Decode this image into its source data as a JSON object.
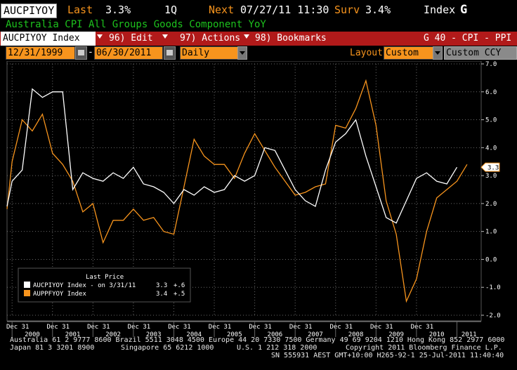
{
  "header": {
    "ticker": "AUCPIYOY",
    "last_label": "Last",
    "last_value": "3.3%",
    "period": "1Q",
    "next_label": "Next",
    "next_value": "07/27/11 11:30",
    "surv_label": "Surv",
    "surv_value": "3.4%",
    "index_label": "Index",
    "g_label": "G"
  },
  "title": "Australia CPI All Groups Goods Component YoY",
  "toolbar": {
    "security": "AUCPIYOY Index",
    "edit": "96) Edit",
    "actions": "97) Actions",
    "bookmarks": "98) Bookmarks",
    "graph_id": "G 40 - CPI - PPI"
  },
  "controls": {
    "start_date": "12/31/1999",
    "dash": "-",
    "end_date": "06/30/2011",
    "frequency": "Daily",
    "layout_label": "Layout",
    "layout_value": "Custom",
    "currency": "Custom CCY"
  },
  "chart_data": {
    "type": "line",
    "y_ticks": [
      "7.0",
      "6.0",
      "5.0",
      "4.0",
      "3.0",
      "2.0",
      "1.0",
      "0.0",
      "-1.0",
      "-2.0"
    ],
    "ylim": [
      -2.0,
      7.0
    ],
    "xlim": [
      1999.875,
      2011.6
    ],
    "x_quarter_labels": [
      "Dec 31",
      "Dec 31",
      "Dec 31",
      "Dec 31",
      "Dec 31",
      "Dec 31",
      "Dec 31",
      "Dec 31",
      "Dec 31",
      "Dec 31",
      "Dec 31"
    ],
    "x_quarter_positions": [
      2000.0,
      2001.0,
      2002.0,
      2003.0,
      2004.0,
      2005.0,
      2006.0,
      2007.0,
      2008.0,
      2009.0,
      2010.0
    ],
    "x_year_labels": [
      "2000",
      "2001",
      "2002",
      "2003",
      "2004",
      "2005",
      "2006",
      "2007",
      "2008",
      "2009",
      "2010",
      "2011"
    ],
    "x_year_positions": [
      2000.5,
      2001.5,
      2002.5,
      2003.5,
      2004.5,
      2005.5,
      2006.5,
      2007.5,
      2008.5,
      2009.5,
      2010.5,
      2011.3
    ],
    "last_value_tag": "3.3",
    "grid": true,
    "legend": {
      "title": "Last Price",
      "placement": "bottom-left",
      "entries": [
        {
          "text": "AUCPIYOY Index - on 3/31/11",
          "value": "3.3",
          "change": "+.6",
          "color": "#ffffff"
        },
        {
          "text": "AUPPFYOY Index",
          "value": "3.4",
          "change": "+.5",
          "color": "#f7941d"
        }
      ]
    },
    "series": [
      {
        "color": "#ffffff",
        "x": [
          1999.875,
          2000.0,
          2000.25,
          2000.5,
          2000.75,
          2001.0,
          2001.25,
          2001.5,
          2001.75,
          2002.0,
          2002.25,
          2002.5,
          2002.75,
          2003.0,
          2003.25,
          2003.5,
          2003.75,
          2004.0,
          2004.25,
          2004.5,
          2004.75,
          2005.0,
          2005.25,
          2005.5,
          2005.75,
          2006.0,
          2006.25,
          2006.5,
          2006.75,
          2007.0,
          2007.25,
          2007.5,
          2007.75,
          2008.0,
          2008.25,
          2008.5,
          2008.75,
          2009.0,
          2009.25,
          2009.5,
          2009.75,
          2010.0,
          2010.25,
          2010.5,
          2010.75,
          2011.0,
          2011.25
        ],
        "values": [
          1.9,
          2.8,
          3.2,
          6.1,
          5.8,
          6.0,
          6.0,
          2.5,
          3.1,
          2.9,
          2.8,
          3.1,
          2.9,
          3.3,
          2.7,
          2.6,
          2.4,
          2.0,
          2.5,
          2.3,
          2.6,
          2.4,
          2.5,
          3.0,
          2.8,
          3.0,
          4.0,
          3.9,
          3.2,
          2.5,
          2.1,
          1.9,
          3.2,
          4.2,
          4.5,
          5.0,
          3.7,
          2.6,
          1.5,
          1.3,
          2.1,
          2.9,
          3.1,
          2.8,
          2.7,
          3.3,
          null
        ]
      },
      {
        "color": "#f7941d",
        "x": [
          1999.875,
          2000.0,
          2000.25,
          2000.5,
          2000.75,
          2001.0,
          2001.25,
          2001.5,
          2001.75,
          2002.0,
          2002.25,
          2002.5,
          2002.75,
          2003.0,
          2003.25,
          2003.5,
          2003.75,
          2004.0,
          2004.25,
          2004.5,
          2004.75,
          2005.0,
          2005.25,
          2005.5,
          2005.75,
          2006.0,
          2006.25,
          2006.5,
          2006.75,
          2007.0,
          2007.25,
          2007.5,
          2007.75,
          2008.0,
          2008.25,
          2008.5,
          2008.75,
          2009.0,
          2009.25,
          2009.5,
          2009.75,
          2010.0,
          2010.25,
          2010.5,
          2010.75,
          2011.0,
          2011.25
        ],
        "values": [
          1.8,
          3.5,
          5.0,
          4.6,
          5.2,
          3.8,
          3.4,
          2.8,
          1.7,
          2.0,
          0.6,
          1.4,
          1.4,
          1.8,
          1.4,
          1.5,
          1.0,
          0.9,
          2.6,
          4.3,
          3.7,
          3.4,
          3.4,
          2.9,
          3.8,
          4.5,
          3.9,
          3.3,
          2.8,
          2.3,
          2.4,
          2.6,
          2.7,
          4.8,
          4.7,
          5.4,
          6.4,
          4.8,
          2.1,
          0.9,
          -1.5,
          -0.7,
          1.0,
          2.2,
          2.5,
          2.8,
          3.4
        ]
      }
    ]
  },
  "footer": {
    "line1": "Australia 61 2 9777 8600 Brazil 5511 3048 4500 Europe 44 20 7330 7500 Germany 49 69 9204 1210 Hong Kong 852 2977 6000",
    "line2a": "Japan 81 3 3201 8900",
    "line2b": "Singapore 65 6212 1000",
    "line2c": "U.S. 1 212 318 2000",
    "line2d": "Copyright 2011 Bloomberg Finance L.P.",
    "line3": "SN 555931 AEST GMT+10:00 H265-92-1 25-Jul-2011 11:40:40"
  },
  "colors": {
    "orange": "#f7941d",
    "green": "#1dc21d",
    "red_bar": "#b11a1a"
  }
}
